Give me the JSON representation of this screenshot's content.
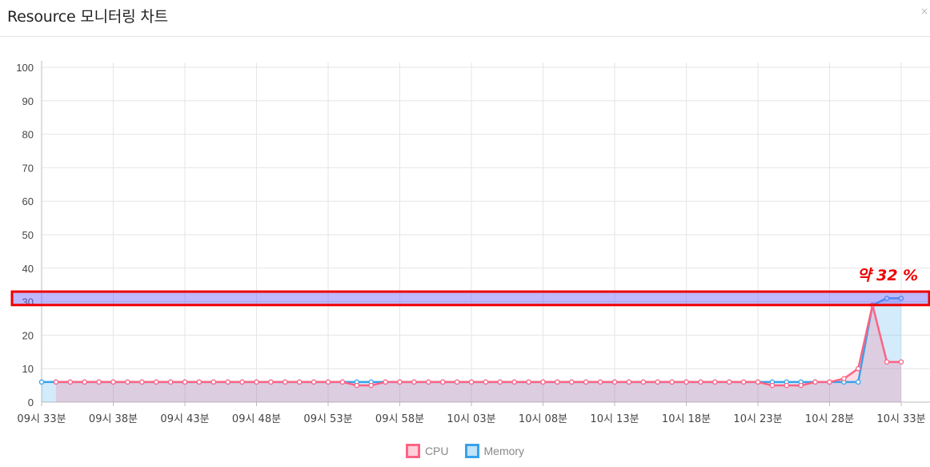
{
  "header": {
    "title": "Resource 모니터링 차트",
    "close": "×"
  },
  "annotation": {
    "text": "약 32 %"
  },
  "colors": {
    "cpu": "#ff6384",
    "memory": "#36a2eb",
    "highlight": "#ee0000"
  },
  "chart_data": {
    "type": "line",
    "title": "Resource 모니터링 차트",
    "xlabel": "",
    "ylabel": "",
    "ylim": [
      0,
      100
    ],
    "yticks": [
      0,
      10,
      20,
      30,
      40,
      50,
      60,
      70,
      80,
      90,
      100
    ],
    "grid": true,
    "legend_position": "bottom",
    "xtick_labels": [
      "09시 33분",
      "09시 38분",
      "09시 43분",
      "09시 48분",
      "09시 53분",
      "09시 58분",
      "10시 03분",
      "10시 08분",
      "10시 13분",
      "10시 18분",
      "10시 23분",
      "10시 28분",
      "10시 33분"
    ],
    "x_points": 61,
    "series": [
      {
        "name": "CPU",
        "color": "#ff6384",
        "start_index": 1,
        "values": [
          6,
          6,
          6,
          6,
          6,
          6,
          6,
          6,
          6,
          6,
          6,
          6,
          6,
          6,
          6,
          6,
          6,
          6,
          6,
          6,
          6,
          5,
          5,
          6,
          6,
          6,
          6,
          6,
          6,
          6,
          6,
          6,
          6,
          6,
          6,
          6,
          6,
          6,
          6,
          6,
          6,
          6,
          6,
          6,
          6,
          6,
          6,
          6,
          6,
          6,
          5,
          5,
          5,
          6,
          6,
          7,
          10,
          29,
          12,
          12
        ]
      },
      {
        "name": "Memory",
        "color": "#36a2eb",
        "start_index": 0,
        "values": [
          6,
          6,
          6,
          6,
          6,
          6,
          6,
          6,
          6,
          6,
          6,
          6,
          6,
          6,
          6,
          6,
          6,
          6,
          6,
          6,
          6,
          6,
          6,
          6,
          6,
          6,
          6,
          6,
          6,
          6,
          6,
          6,
          6,
          6,
          6,
          6,
          6,
          6,
          6,
          6,
          6,
          6,
          6,
          6,
          6,
          6,
          6,
          6,
          6,
          6,
          6,
          6,
          6,
          6,
          6,
          6,
          6,
          6,
          29,
          31,
          31
        ]
      }
    ],
    "highlight_band": {
      "from": 29,
      "to": 33,
      "label": "약 32 %"
    }
  }
}
